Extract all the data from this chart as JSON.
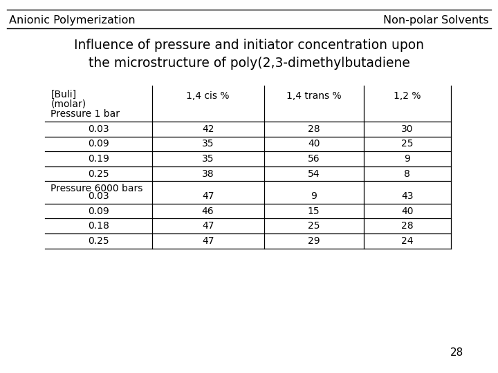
{
  "header_left": "Anionic Polymerization",
  "header_right": "Non-polar Solvents",
  "title_line1": "Influence of pressure and initiator concentration upon",
  "title_line2": "the microstructure of poly(2,3-dimethylbutadiene",
  "col_headers": [
    "[Buli]\n(molar)",
    "1,4 cis %",
    "1,4 trans %",
    "1,2 %"
  ],
  "section1_label": "Pressure 1 bar",
  "section2_label": "Pressure 6000 bars",
  "section1_rows": [
    [
      "0.03",
      "42",
      "28",
      "30"
    ],
    [
      "0.09",
      "35",
      "40",
      "25"
    ],
    [
      "0.19",
      "35",
      "56",
      "9"
    ],
    [
      "0.25",
      "38",
      "54",
      "8"
    ]
  ],
  "section2_rows": [
    [
      "0.03",
      "47",
      "9",
      "43"
    ],
    [
      "0.09",
      "46",
      "15",
      "40"
    ],
    [
      "0.18",
      "47",
      "25",
      "28"
    ],
    [
      "0.25",
      "47",
      "29",
      "24"
    ]
  ],
  "page_number": "28",
  "background_color": "#ffffff",
  "header_fontsize": 11.5,
  "title_fontsize": 13.5,
  "table_fontsize": 10,
  "page_num_fontsize": 11
}
